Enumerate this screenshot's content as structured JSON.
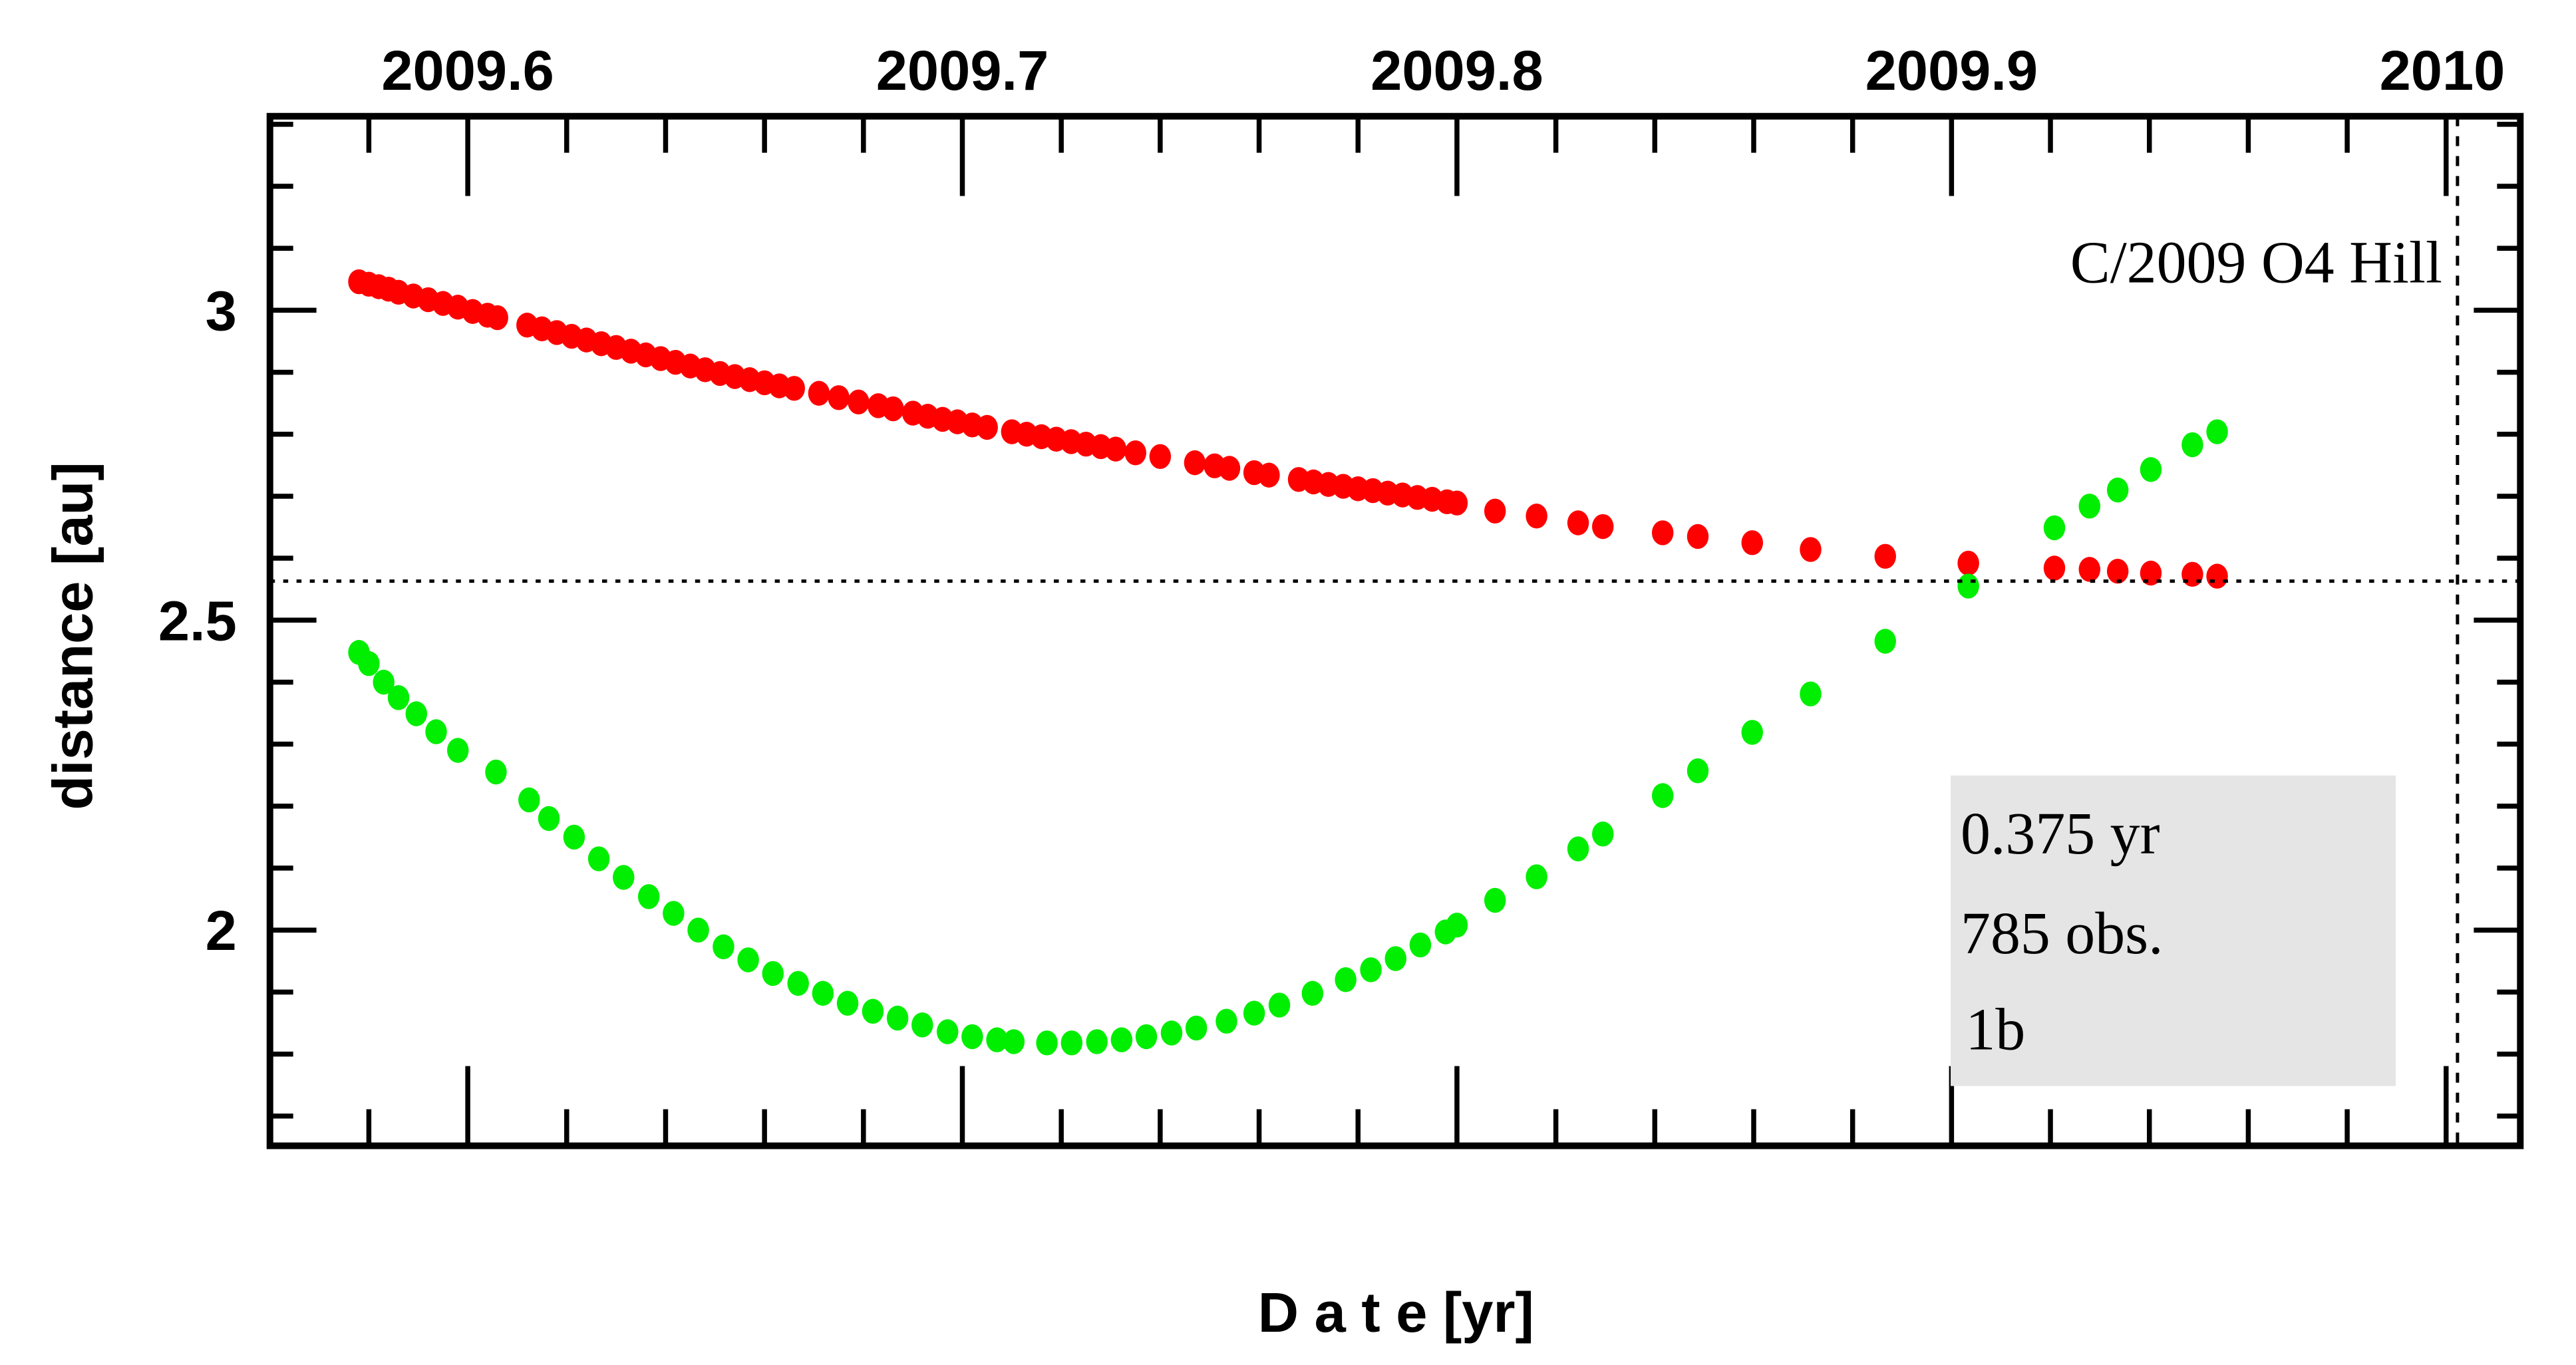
{
  "chart_data": {
    "type": "scatter",
    "title": "C/2009 O4 Hill",
    "xlabel": "D a t e [yr]",
    "ylabel": "distance [au]",
    "xlim": [
      2009.56,
      2010.015
    ],
    "ylim": [
      1.652,
      3.313
    ],
    "x_ticks": [
      2009.6,
      2009.7,
      2009.8,
      2009.9,
      2010
    ],
    "x_tick_labels": [
      "2009.6",
      "2009.7",
      "2009.8",
      "2009.9",
      "2010"
    ],
    "x_minor_step": 0.02,
    "y_ticks": [
      2,
      2.5,
      3
    ],
    "y_tick_labels": [
      "2",
      "2.5",
      "3"
    ],
    "y_minor_step": 0.1,
    "reference_lines": {
      "horizontal_distance": 2.563,
      "vertical_date": 2010.0023
    },
    "colors": {
      "series_1": "#ff0000",
      "series_2": "#00ee00",
      "info_box": "#e5e5e5"
    },
    "info_box": {
      "line1": "0.375 yr",
      "line2": "785 obs.",
      "line3": "1b"
    },
    "series": [
      {
        "name": "red",
        "points": [
          [
            2009.578,
            3.046
          ],
          [
            2009.58,
            3.042
          ],
          [
            2009.582,
            3.038
          ],
          [
            2009.584,
            3.034
          ],
          [
            2009.586,
            3.029
          ],
          [
            2009.589,
            3.023
          ],
          [
            2009.592,
            3.017
          ],
          [
            2009.595,
            3.011
          ],
          [
            2009.598,
            3.005
          ],
          [
            2009.601,
            2.998
          ],
          [
            2009.604,
            2.992
          ],
          [
            2009.606,
            2.988
          ],
          [
            2009.612,
            2.976
          ],
          [
            2009.615,
            2.97
          ],
          [
            2009.618,
            2.964
          ],
          [
            2009.621,
            2.958
          ],
          [
            2009.624,
            2.952
          ],
          [
            2009.627,
            2.946
          ],
          [
            2009.63,
            2.94
          ],
          [
            2009.633,
            2.934
          ],
          [
            2009.636,
            2.928
          ],
          [
            2009.639,
            2.922
          ],
          [
            2009.642,
            2.916
          ],
          [
            2009.645,
            2.91
          ],
          [
            2009.648,
            2.904
          ],
          [
            2009.651,
            2.898
          ],
          [
            2009.654,
            2.893
          ],
          [
            2009.657,
            2.888
          ],
          [
            2009.66,
            2.883
          ],
          [
            2009.663,
            2.878
          ],
          [
            2009.666,
            2.874
          ],
          [
            2009.671,
            2.866
          ],
          [
            2009.675,
            2.859
          ],
          [
            2009.679,
            2.852
          ],
          [
            2009.683,
            2.846
          ],
          [
            2009.686,
            2.841
          ],
          [
            2009.69,
            2.834
          ],
          [
            2009.693,
            2.829
          ],
          [
            2009.696,
            2.824
          ],
          [
            2009.699,
            2.82
          ],
          [
            2009.702,
            2.815
          ],
          [
            2009.705,
            2.811
          ],
          [
            2009.71,
            2.804
          ],
          [
            2009.713,
            2.8
          ],
          [
            2009.716,
            2.796
          ],
          [
            2009.719,
            2.792
          ],
          [
            2009.722,
            2.788
          ],
          [
            2009.725,
            2.784
          ],
          [
            2009.728,
            2.78
          ],
          [
            2009.731,
            2.776
          ],
          [
            2009.735,
            2.77
          ],
          [
            2009.74,
            2.764
          ],
          [
            2009.747,
            2.754
          ],
          [
            2009.751,
            2.749
          ],
          [
            2009.754,
            2.745
          ],
          [
            2009.759,
            2.738
          ],
          [
            2009.762,
            2.734
          ],
          [
            2009.768,
            2.727
          ],
          [
            2009.771,
            2.723
          ],
          [
            2009.774,
            2.719
          ],
          [
            2009.777,
            2.716
          ],
          [
            2009.78,
            2.712
          ],
          [
            2009.783,
            2.709
          ],
          [
            2009.786,
            2.705
          ],
          [
            2009.789,
            2.702
          ],
          [
            2009.792,
            2.698
          ],
          [
            2009.795,
            2.695
          ],
          [
            2009.798,
            2.691
          ],
          [
            2009.8,
            2.689
          ],
          [
            2009.8077,
            2.676
          ],
          [
            2009.8161,
            2.668
          ],
          [
            2009.8245,
            2.657
          ],
          [
            2009.8295,
            2.651
          ],
          [
            2009.8416,
            2.641
          ],
          [
            2009.8487,
            2.635
          ],
          [
            2009.8597,
            2.625
          ],
          [
            2009.8715,
            2.614
          ],
          [
            2009.8866,
            2.603
          ],
          [
            2009.9034,
            2.592
          ],
          [
            2009.9208,
            2.584
          ],
          [
            2009.9279,
            2.582
          ],
          [
            2009.9336,
            2.579
          ],
          [
            2009.9403,
            2.576
          ],
          [
            2009.9487,
            2.574
          ],
          [
            2009.9537,
            2.571
          ]
        ]
      },
      {
        "name": "green",
        "points": [
          [
            2009.578,
            2.448
          ],
          [
            2009.58,
            2.43
          ],
          [
            2009.583,
            2.4
          ],
          [
            2009.586,
            2.375
          ],
          [
            2009.5896,
            2.349
          ],
          [
            2009.5936,
            2.32
          ],
          [
            2009.598,
            2.29
          ],
          [
            2009.6057,
            2.255
          ],
          [
            2009.6124,
            2.21
          ],
          [
            2009.6164,
            2.18
          ],
          [
            2009.6215,
            2.15
          ],
          [
            2009.6265,
            2.115
          ],
          [
            2009.6315,
            2.085
          ],
          [
            2009.6366,
            2.054
          ],
          [
            2009.6416,
            2.027
          ],
          [
            2009.6466,
            2.0
          ],
          [
            2009.6517,
            1.973
          ],
          [
            2009.6567,
            1.952
          ],
          [
            2009.6617,
            1.93
          ],
          [
            2009.6668,
            1.914
          ],
          [
            2009.6718,
            1.898
          ],
          [
            2009.6768,
            1.882
          ],
          [
            2009.6819,
            1.869
          ],
          [
            2009.6869,
            1.858
          ],
          [
            2009.6919,
            1.847
          ],
          [
            2009.697,
            1.836
          ],
          [
            2009.702,
            1.828
          ],
          [
            2009.707,
            1.823
          ],
          [
            2009.7104,
            1.82
          ],
          [
            2009.7171,
            1.818
          ],
          [
            2009.7221,
            1.818
          ],
          [
            2009.7272,
            1.82
          ],
          [
            2009.7322,
            1.823
          ],
          [
            2009.7372,
            1.828
          ],
          [
            2009.7423,
            1.834
          ],
          [
            2009.7473,
            1.842
          ],
          [
            2009.7534,
            1.853
          ],
          [
            2009.759,
            1.866
          ],
          [
            2009.7641,
            1.879
          ],
          [
            2009.7708,
            1.898
          ],
          [
            2009.7775,
            1.92
          ],
          [
            2009.7826,
            1.936
          ],
          [
            2009.7876,
            1.954
          ],
          [
            2009.7926,
            1.976
          ],
          [
            2009.7977,
            1.997
          ],
          [
            2009.8,
            2.008
          ],
          [
            2009.8077,
            2.048
          ],
          [
            2009.8161,
            2.086
          ],
          [
            2009.8245,
            2.131
          ],
          [
            2009.8295,
            2.155
          ],
          [
            2009.8416,
            2.217
          ],
          [
            2009.8487,
            2.257
          ],
          [
            2009.8597,
            2.319
          ],
          [
            2009.8715,
            2.381
          ],
          [
            2009.8866,
            2.466
          ],
          [
            2009.9034,
            2.555
          ],
          [
            2009.9208,
            2.649
          ],
          [
            2009.9279,
            2.684
          ],
          [
            2009.9336,
            2.71
          ],
          [
            2009.9403,
            2.743
          ],
          [
            2009.9487,
            2.783
          ],
          [
            2009.9537,
            2.804
          ]
        ]
      }
    ]
  }
}
